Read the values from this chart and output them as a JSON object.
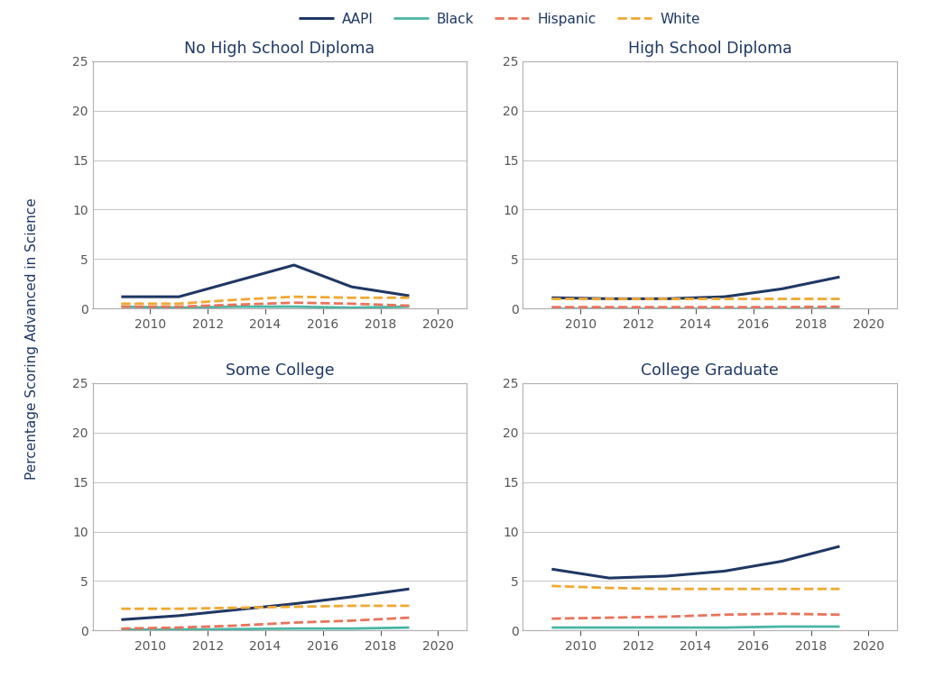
{
  "years": [
    2009,
    2011,
    2013,
    2015,
    2017,
    2019
  ],
  "subplots": [
    {
      "title": "No High School Diploma",
      "AAPI": [
        1.2,
        1.2,
        2.8,
        4.4,
        2.2,
        1.3
      ],
      "Black": [
        0.2,
        0.1,
        0.2,
        0.2,
        0.1,
        0.2
      ],
      "Hispanic": [
        0.2,
        0.2,
        0.4,
        0.6,
        0.5,
        0.3
      ],
      "White": [
        0.5,
        0.5,
        0.9,
        1.2,
        1.1,
        1.1
      ]
    },
    {
      "title": "High School Diploma",
      "AAPI": [
        1.1,
        1.0,
        1.0,
        1.2,
        2.0,
        3.2
      ],
      "Black": [
        0.05,
        0.05,
        0.05,
        0.05,
        0.05,
        0.05
      ],
      "Hispanic": [
        0.15,
        0.15,
        0.15,
        0.15,
        0.15,
        0.2
      ],
      "White": [
        1.0,
        1.0,
        1.0,
        1.0,
        1.0,
        1.0
      ]
    },
    {
      "title": "Some College",
      "AAPI": [
        1.1,
        1.5,
        2.1,
        2.7,
        3.4,
        4.2
      ],
      "Black": [
        0.1,
        0.1,
        0.15,
        0.2,
        0.2,
        0.3
      ],
      "Hispanic": [
        0.2,
        0.3,
        0.5,
        0.8,
        1.0,
        1.3
      ],
      "White": [
        2.2,
        2.2,
        2.3,
        2.4,
        2.5,
        2.5
      ]
    },
    {
      "title": "College Graduate",
      "AAPI": [
        6.2,
        5.3,
        5.5,
        6.0,
        7.0,
        8.5
      ],
      "Black": [
        0.3,
        0.3,
        0.3,
        0.3,
        0.4,
        0.4
      ],
      "Hispanic": [
        1.2,
        1.3,
        1.4,
        1.6,
        1.7,
        1.6
      ],
      "White": [
        4.5,
        4.3,
        4.2,
        4.2,
        4.2,
        4.2
      ]
    }
  ],
  "colors": {
    "AAPI": {
      "color": "#1f3864",
      "linestyle": "-",
      "linewidth": 2.2
    },
    "Black": {
      "color": "#4ab5a5",
      "linestyle": "-",
      "linewidth": 2.0
    },
    "Hispanic": {
      "color": "#e8735a",
      "linestyle": "--",
      "linewidth": 2.0
    },
    "White": {
      "color": "#f0a830",
      "linestyle": "--",
      "linewidth": 2.0
    }
  },
  "ylabel": "Percentage Scoring Advanced in Science",
  "ylim": [
    0,
    25
  ],
  "yticks": [
    0,
    5,
    10,
    15,
    20,
    25
  ],
  "xticks": [
    2010,
    2012,
    2014,
    2016,
    2018,
    2020
  ],
  "xlim": [
    2008,
    2021
  ],
  "title_color": "#1f3864",
  "grid_color": "#c8c8c8",
  "border_color": "#b0b0b0",
  "background_color": "#ffffff",
  "legend_order": [
    "AAPI",
    "Black",
    "Hispanic",
    "White"
  ]
}
